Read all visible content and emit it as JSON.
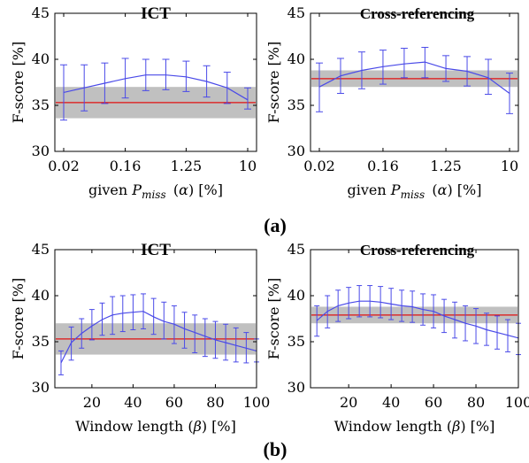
{
  "panel_labels": {
    "a": "(a)",
    "b": "(b)"
  },
  "colors": {
    "line": "#4a4ae8",
    "baseline": "#e01010",
    "band": "#c0c0c0",
    "axis": "#000000"
  },
  "chart_data": [
    {
      "type": "line",
      "title": "ICT",
      "xlabel": "given P_miss (α) [%]",
      "ylabel": "F-score [%]",
      "x_scale": "log",
      "xtick_labels": [
        "0.02",
        "0.16",
        "1.25",
        "10"
      ],
      "xlim": [
        0.02,
        10
      ],
      "ylim": [
        30,
        45
      ],
      "yticks": [
        30,
        35,
        40,
        45
      ],
      "series": [
        {
          "x": [
            0.02,
            0.04,
            0.08,
            0.16,
            0.32,
            0.63,
            1.25,
            2.5,
            5,
            10
          ],
          "values": [
            36.4,
            36.9,
            37.4,
            37.9,
            38.3,
            38.3,
            38.1,
            37.6,
            36.9,
            35.6
          ],
          "err_low": [
            33.4,
            34.4,
            35.2,
            35.8,
            36.6,
            36.7,
            36.5,
            35.9,
            35.2,
            34.6
          ],
          "err_high": [
            39.4,
            39.4,
            39.6,
            40.1,
            40.0,
            40.0,
            39.8,
            39.3,
            38.6,
            36.9
          ]
        }
      ],
      "baseline": 35.3,
      "band": [
        33.6,
        37.0
      ]
    },
    {
      "type": "line",
      "title": "Cross-referencing",
      "xlabel": "given P_miss (α) [%]",
      "ylabel": "F-score [%]",
      "x_scale": "log",
      "xtick_labels": [
        "0.02",
        "0.16",
        "1.25",
        "10"
      ],
      "xlim": [
        0.02,
        10
      ],
      "ylim": [
        30,
        45
      ],
      "yticks": [
        30,
        35,
        40,
        45
      ],
      "series": [
        {
          "x": [
            0.02,
            0.04,
            0.08,
            0.16,
            0.32,
            0.63,
            1.25,
            2.5,
            5,
            10
          ],
          "values": [
            37.0,
            38.2,
            38.8,
            39.2,
            39.5,
            39.7,
            39.0,
            38.7,
            38.0,
            36.3
          ],
          "err_low": [
            34.3,
            36.3,
            36.8,
            37.3,
            38.0,
            38.0,
            37.6,
            37.1,
            36.2,
            34.1
          ],
          "err_high": [
            39.6,
            40.1,
            40.8,
            41.0,
            41.2,
            41.3,
            40.4,
            40.3,
            40.0,
            38.5
          ]
        }
      ],
      "baseline": 37.9,
      "band": [
        37.0,
        38.8
      ]
    },
    {
      "type": "line",
      "title": "ICT",
      "xlabel": "Window length (β) [%]",
      "ylabel": "F-score [%]",
      "x_scale": "linear",
      "xlim": [
        2,
        100
      ],
      "ylim": [
        30,
        45
      ],
      "xticks": [
        20,
        40,
        60,
        80,
        100
      ],
      "yticks": [
        30,
        35,
        40,
        45
      ],
      "series": [
        {
          "x": [
            5,
            10,
            15,
            20,
            25,
            30,
            35,
            40,
            45,
            50,
            55,
            60,
            65,
            70,
            75,
            80,
            85,
            90,
            95,
            100
          ],
          "values": [
            32.7,
            34.9,
            35.9,
            36.7,
            37.4,
            37.9,
            38.1,
            38.2,
            38.3,
            37.7,
            37.2,
            36.9,
            36.4,
            36.0,
            35.6,
            35.2,
            34.9,
            34.6,
            34.3,
            34.0
          ],
          "err_low": [
            31.4,
            33.0,
            34.3,
            35.2,
            35.7,
            35.8,
            36.1,
            36.3,
            36.4,
            35.8,
            35.3,
            34.8,
            34.3,
            33.8,
            33.4,
            33.2,
            33.0,
            32.8,
            32.7,
            32.8
          ],
          "err_high": [
            34.0,
            36.6,
            37.5,
            38.5,
            39.2,
            39.9,
            40.0,
            40.1,
            40.2,
            39.7,
            39.3,
            38.9,
            38.2,
            37.9,
            37.5,
            37.2,
            36.9,
            36.5,
            36.0,
            35.3
          ]
        }
      ],
      "baseline": 35.3,
      "band": [
        33.6,
        37.0
      ]
    },
    {
      "type": "line",
      "title": "Cross-referencing",
      "xlabel": "Window length (β) [%]",
      "ylabel": "F-score [%]",
      "x_scale": "linear",
      "xlim": [
        2,
        100
      ],
      "ylim": [
        30,
        45
      ],
      "xticks": [
        20,
        40,
        60,
        80,
        100
      ],
      "yticks": [
        30,
        35,
        40,
        45
      ],
      "series": [
        {
          "x": [
            5,
            10,
            15,
            20,
            25,
            30,
            35,
            40,
            45,
            50,
            55,
            60,
            65,
            70,
            75,
            80,
            85,
            90,
            95,
            100
          ],
          "values": [
            37.3,
            38.3,
            38.9,
            39.2,
            39.4,
            39.4,
            39.3,
            39.1,
            38.9,
            38.8,
            38.5,
            38.3,
            37.8,
            37.4,
            37.0,
            36.7,
            36.3,
            36.0,
            35.7,
            35.4
          ],
          "err_low": [
            35.6,
            36.5,
            37.2,
            37.5,
            37.7,
            37.7,
            37.6,
            37.4,
            37.2,
            37.1,
            36.8,
            36.5,
            36.0,
            35.4,
            35.1,
            34.8,
            34.6,
            34.2,
            33.9,
            33.6
          ],
          "err_high": [
            38.9,
            40.0,
            40.6,
            40.9,
            41.1,
            41.1,
            41.0,
            40.8,
            40.6,
            40.5,
            40.2,
            40.1,
            39.6,
            39.3,
            38.9,
            38.6,
            38.1,
            37.8,
            37.4,
            37.0
          ]
        }
      ],
      "baseline": 37.9,
      "band": [
        37.0,
        38.8
      ]
    }
  ]
}
